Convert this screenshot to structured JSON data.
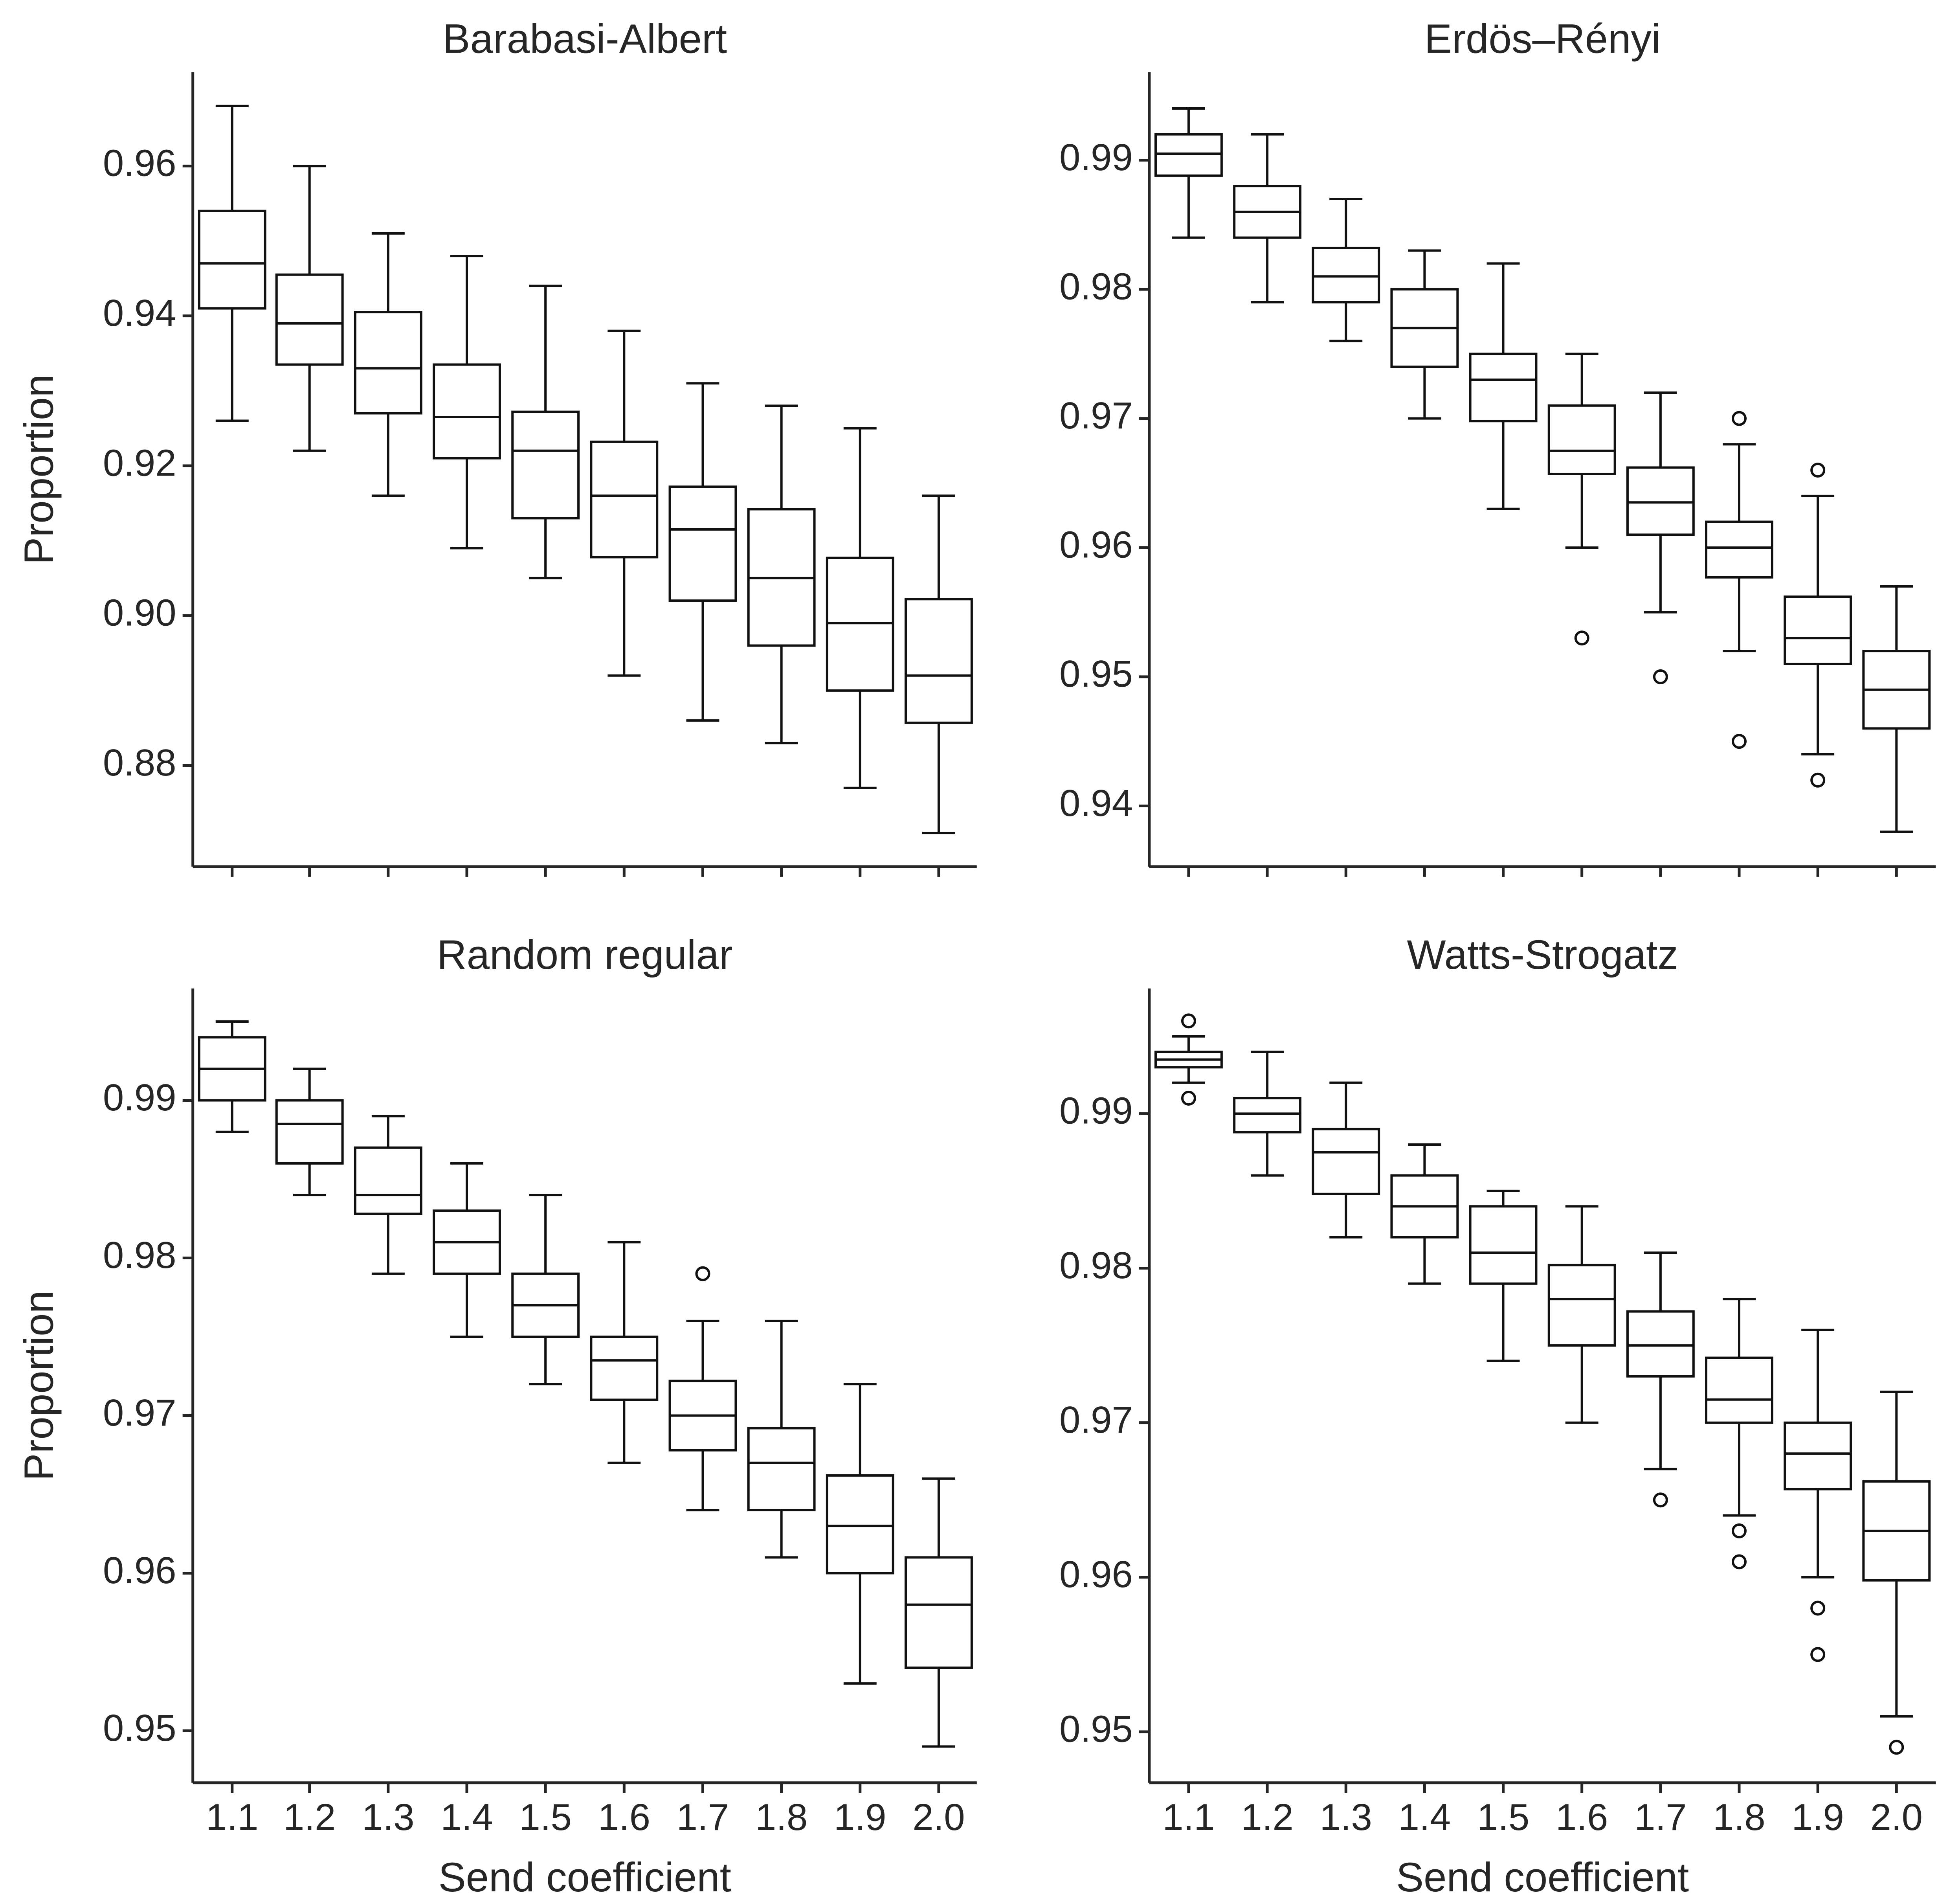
{
  "figure": {
    "y_label": "Proportion",
    "x_label": "Send coefficient"
  },
  "chart_data": [
    {
      "type": "box",
      "title": "Barabasi-Albert",
      "xlabel": "",
      "ylabel": "Proportion",
      "categories": [
        "1.1",
        "1.2",
        "1.3",
        "1.4",
        "1.5",
        "1.6",
        "1.7",
        "1.8",
        "1.9",
        "2.0"
      ],
      "ylim": [
        0.8665,
        0.9725
      ],
      "yticks": [
        0.88,
        0.9,
        0.92,
        0.94,
        0.96
      ],
      "ytick_labels": [
        "0.88",
        "0.90",
        "0.92",
        "0.94",
        "0.96"
      ],
      "show_xtick_labels": false,
      "boxes": [
        {
          "whislo": 0.926,
          "q1": 0.941,
          "med": 0.947,
          "q3": 0.954,
          "whishi": 0.968,
          "fliers": []
        },
        {
          "whislo": 0.922,
          "q1": 0.9335,
          "med": 0.939,
          "q3": 0.9455,
          "whishi": 0.96,
          "fliers": []
        },
        {
          "whislo": 0.916,
          "q1": 0.927,
          "med": 0.933,
          "q3": 0.9405,
          "whishi": 0.951,
          "fliers": []
        },
        {
          "whislo": 0.909,
          "q1": 0.921,
          "med": 0.9265,
          "q3": 0.9335,
          "whishi": 0.948,
          "fliers": []
        },
        {
          "whislo": 0.905,
          "q1": 0.913,
          "med": 0.922,
          "q3": 0.9272,
          "whishi": 0.944,
          "fliers": []
        },
        {
          "whislo": 0.892,
          "q1": 0.9078,
          "med": 0.916,
          "q3": 0.9232,
          "whishi": 0.938,
          "fliers": []
        },
        {
          "whislo": 0.886,
          "q1": 0.902,
          "med": 0.9115,
          "q3": 0.9172,
          "whishi": 0.931,
          "fliers": []
        },
        {
          "whislo": 0.883,
          "q1": 0.896,
          "med": 0.905,
          "q3": 0.9142,
          "whishi": 0.928,
          "fliers": []
        },
        {
          "whislo": 0.877,
          "q1": 0.89,
          "med": 0.899,
          "q3": 0.9077,
          "whishi": 0.925,
          "fliers": []
        },
        {
          "whislo": 0.871,
          "q1": 0.8857,
          "med": 0.892,
          "q3": 0.9022,
          "whishi": 0.916,
          "fliers": []
        }
      ]
    },
    {
      "type": "box",
      "title": "Erdös–Rényi",
      "xlabel": "",
      "ylabel": "",
      "categories": [
        "1.1",
        "1.2",
        "1.3",
        "1.4",
        "1.5",
        "1.6",
        "1.7",
        "1.8",
        "1.9",
        "2.0"
      ],
      "ylim": [
        0.9353,
        0.9968
      ],
      "yticks": [
        0.94,
        0.95,
        0.96,
        0.97,
        0.98,
        0.99
      ],
      "ytick_labels": [
        "0.94",
        "0.95",
        "0.96",
        "0.97",
        "0.98",
        "0.99"
      ],
      "show_xtick_labels": false,
      "boxes": [
        {
          "whislo": 0.984,
          "q1": 0.9888,
          "med": 0.9905,
          "q3": 0.992,
          "whishi": 0.994,
          "fliers": []
        },
        {
          "whislo": 0.979,
          "q1": 0.984,
          "med": 0.986,
          "q3": 0.988,
          "whishi": 0.992,
          "fliers": []
        },
        {
          "whislo": 0.976,
          "q1": 0.979,
          "med": 0.981,
          "q3": 0.9832,
          "whishi": 0.987,
          "fliers": []
        },
        {
          "whislo": 0.97,
          "q1": 0.974,
          "med": 0.977,
          "q3": 0.98,
          "whishi": 0.983,
          "fliers": []
        },
        {
          "whislo": 0.963,
          "q1": 0.9698,
          "med": 0.973,
          "q3": 0.975,
          "whishi": 0.982,
          "fliers": []
        },
        {
          "whislo": 0.96,
          "q1": 0.9657,
          "med": 0.9675,
          "q3": 0.971,
          "whishi": 0.975,
          "fliers": [
            0.953
          ]
        },
        {
          "whislo": 0.955,
          "q1": 0.961,
          "med": 0.9635,
          "q3": 0.9662,
          "whishi": 0.972,
          "fliers": [
            0.95
          ]
        },
        {
          "whislo": 0.952,
          "q1": 0.9577,
          "med": 0.96,
          "q3": 0.962,
          "whishi": 0.968,
          "fliers": [
            0.97,
            0.945
          ]
        },
        {
          "whislo": 0.944,
          "q1": 0.951,
          "med": 0.953,
          "q3": 0.9562,
          "whishi": 0.964,
          "fliers": [
            0.966,
            0.942
          ]
        },
        {
          "whislo": 0.938,
          "q1": 0.946,
          "med": 0.949,
          "q3": 0.952,
          "whishi": 0.957,
          "fliers": []
        }
      ]
    },
    {
      "type": "box",
      "title": "Random regular",
      "xlabel": "Send coefficient",
      "ylabel": "Proportion",
      "categories": [
        "1.1",
        "1.2",
        "1.3",
        "1.4",
        "1.5",
        "1.6",
        "1.7",
        "1.8",
        "1.9",
        "2.0"
      ],
      "ylim": [
        0.9467,
        0.9971
      ],
      "yticks": [
        0.95,
        0.96,
        0.97,
        0.98,
        0.99
      ],
      "ytick_labels": [
        "0.95",
        "0.96",
        "0.97",
        "0.98",
        "0.99"
      ],
      "show_xtick_labels": true,
      "boxes": [
        {
          "whislo": 0.988,
          "q1": 0.99,
          "med": 0.992,
          "q3": 0.994,
          "whishi": 0.995,
          "fliers": []
        },
        {
          "whislo": 0.984,
          "q1": 0.986,
          "med": 0.9885,
          "q3": 0.99,
          "whishi": 0.992,
          "fliers": []
        },
        {
          "whislo": 0.979,
          "q1": 0.9828,
          "med": 0.984,
          "q3": 0.987,
          "whishi": 0.989,
          "fliers": []
        },
        {
          "whislo": 0.975,
          "q1": 0.979,
          "med": 0.981,
          "q3": 0.983,
          "whishi": 0.986,
          "fliers": []
        },
        {
          "whislo": 0.972,
          "q1": 0.975,
          "med": 0.977,
          "q3": 0.979,
          "whishi": 0.984,
          "fliers": []
        },
        {
          "whislo": 0.967,
          "q1": 0.971,
          "med": 0.9735,
          "q3": 0.975,
          "whishi": 0.981,
          "fliers": []
        },
        {
          "whislo": 0.964,
          "q1": 0.9678,
          "med": 0.97,
          "q3": 0.9722,
          "whishi": 0.976,
          "fliers": [
            0.979
          ]
        },
        {
          "whislo": 0.961,
          "q1": 0.964,
          "med": 0.967,
          "q3": 0.9692,
          "whishi": 0.976,
          "fliers": []
        },
        {
          "whislo": 0.953,
          "q1": 0.96,
          "med": 0.963,
          "q3": 0.9662,
          "whishi": 0.972,
          "fliers": []
        },
        {
          "whislo": 0.949,
          "q1": 0.954,
          "med": 0.958,
          "q3": 0.961,
          "whishi": 0.966,
          "fliers": []
        }
      ]
    },
    {
      "type": "box",
      "title": "Watts-Strogatz",
      "xlabel": "Send coefficient",
      "ylabel": "",
      "categories": [
        "1.1",
        "1.2",
        "1.3",
        "1.4",
        "1.5",
        "1.6",
        "1.7",
        "1.8",
        "1.9",
        "2.0"
      ],
      "ylim": [
        0.9467,
        0.9981
      ],
      "yticks": [
        0.95,
        0.96,
        0.97,
        0.98,
        0.99
      ],
      "ytick_labels": [
        "0.95",
        "0.96",
        "0.97",
        "0.98",
        "0.99"
      ],
      "show_xtick_labels": true,
      "boxes": [
        {
          "whislo": 0.992,
          "q1": 0.993,
          "med": 0.9935,
          "q3": 0.994,
          "whishi": 0.995,
          "fliers": [
            0.996,
            0.991
          ]
        },
        {
          "whislo": 0.986,
          "q1": 0.9888,
          "med": 0.99,
          "q3": 0.991,
          "whishi": 0.994,
          "fliers": []
        },
        {
          "whislo": 0.982,
          "q1": 0.9848,
          "med": 0.9875,
          "q3": 0.989,
          "whishi": 0.992,
          "fliers": []
        },
        {
          "whislo": 0.979,
          "q1": 0.982,
          "med": 0.984,
          "q3": 0.986,
          "whishi": 0.988,
          "fliers": []
        },
        {
          "whislo": 0.974,
          "q1": 0.979,
          "med": 0.981,
          "q3": 0.984,
          "whishi": 0.985,
          "fliers": []
        },
        {
          "whislo": 0.97,
          "q1": 0.975,
          "med": 0.978,
          "q3": 0.9802,
          "whishi": 0.984,
          "fliers": []
        },
        {
          "whislo": 0.967,
          "q1": 0.973,
          "med": 0.975,
          "q3": 0.9772,
          "whishi": 0.981,
          "fliers": [
            0.965
          ]
        },
        {
          "whislo": 0.964,
          "q1": 0.97,
          "med": 0.9715,
          "q3": 0.9742,
          "whishi": 0.978,
          "fliers": [
            0.963,
            0.961
          ]
        },
        {
          "whislo": 0.96,
          "q1": 0.9657,
          "med": 0.968,
          "q3": 0.97,
          "whishi": 0.976,
          "fliers": [
            0.958,
            0.955
          ]
        },
        {
          "whislo": 0.951,
          "q1": 0.9598,
          "med": 0.963,
          "q3": 0.9662,
          "whishi": 0.972,
          "fliers": [
            0.949
          ]
        }
      ]
    }
  ]
}
